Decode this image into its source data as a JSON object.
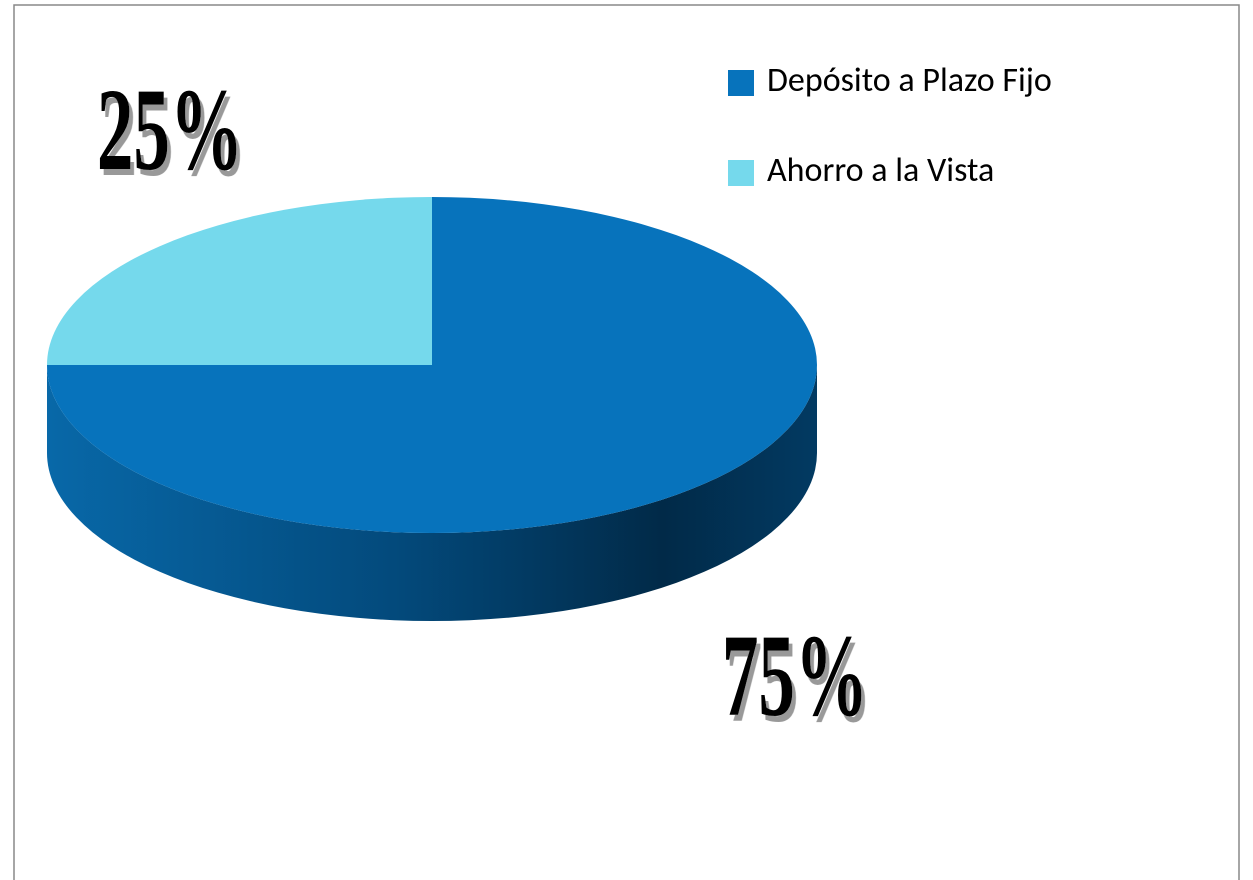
{
  "chart_data": {
    "type": "pie3d",
    "categories": [
      "Depósito a Plazo Fijo",
      "Ahorro a la Vista"
    ],
    "values": [
      75,
      25
    ],
    "value_labels": [
      "75%",
      "25%"
    ],
    "colors": [
      "#0773bc",
      "#75d9ec"
    ],
    "legend": "top-right"
  }
}
